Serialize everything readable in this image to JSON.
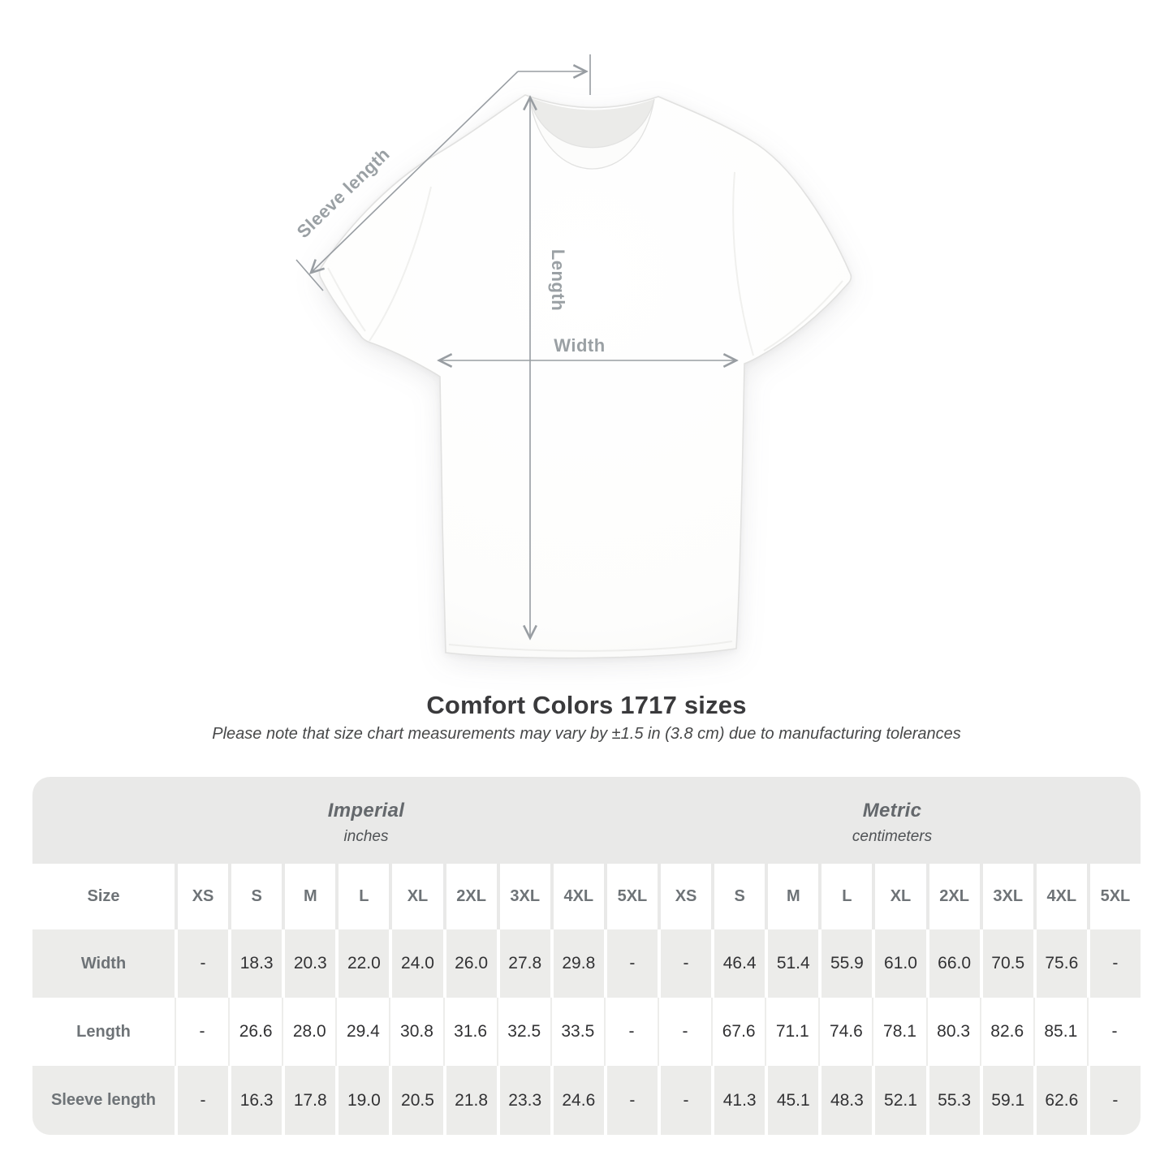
{
  "diagram": {
    "labels": {
      "sleeve_length": "Sleeve length",
      "length": "Length",
      "width": "Width"
    }
  },
  "chart_data": {
    "type": "table",
    "title": "Comfort Colors 1717 sizes",
    "subtitle": "Please note that size chart measurements may vary by ±1.5 in (3.8 cm) due to manufacturing tolerances",
    "unit_groups": [
      {
        "name": "Imperial",
        "unit": "inches"
      },
      {
        "name": "Metric",
        "unit": "centimeters"
      }
    ],
    "size_header": {
      "label": "Size",
      "sizes": [
        "XS",
        "S",
        "M",
        "L",
        "XL",
        "2XL",
        "3XL",
        "4XL",
        "5XL"
      ]
    },
    "rows": [
      {
        "label": "Width",
        "imperial": [
          "-",
          "18.3",
          "20.3",
          "22.0",
          "24.0",
          "26.0",
          "27.8",
          "29.8",
          "-"
        ],
        "metric": [
          "-",
          "46.4",
          "51.4",
          "55.9",
          "61.0",
          "66.0",
          "70.5",
          "75.6",
          "-"
        ]
      },
      {
        "label": "Length",
        "imperial": [
          "-",
          "26.6",
          "28.0",
          "29.4",
          "30.8",
          "31.6",
          "32.5",
          "33.5",
          "-"
        ],
        "metric": [
          "-",
          "67.6",
          "71.1",
          "74.6",
          "78.1",
          "80.3",
          "82.6",
          "85.1",
          "-"
        ]
      },
      {
        "label": "Sleeve length",
        "imperial": [
          "-",
          "16.3",
          "17.8",
          "19.0",
          "20.5",
          "21.8",
          "23.3",
          "24.6",
          "-"
        ],
        "metric": [
          "-",
          "41.3",
          "45.1",
          "48.3",
          "52.1",
          "55.3",
          "59.1",
          "62.6",
          "-"
        ]
      }
    ]
  },
  "colors": {
    "page_bg": "#ffffff",
    "dimension_line": "#989da2",
    "dimension_label": "#9aa0a4",
    "band_gray": "#e9e9e8",
    "cell_gray": "#ececea",
    "header_text": "#6e7377",
    "value_text": "#323234",
    "title_text": "#3a3a3c"
  }
}
